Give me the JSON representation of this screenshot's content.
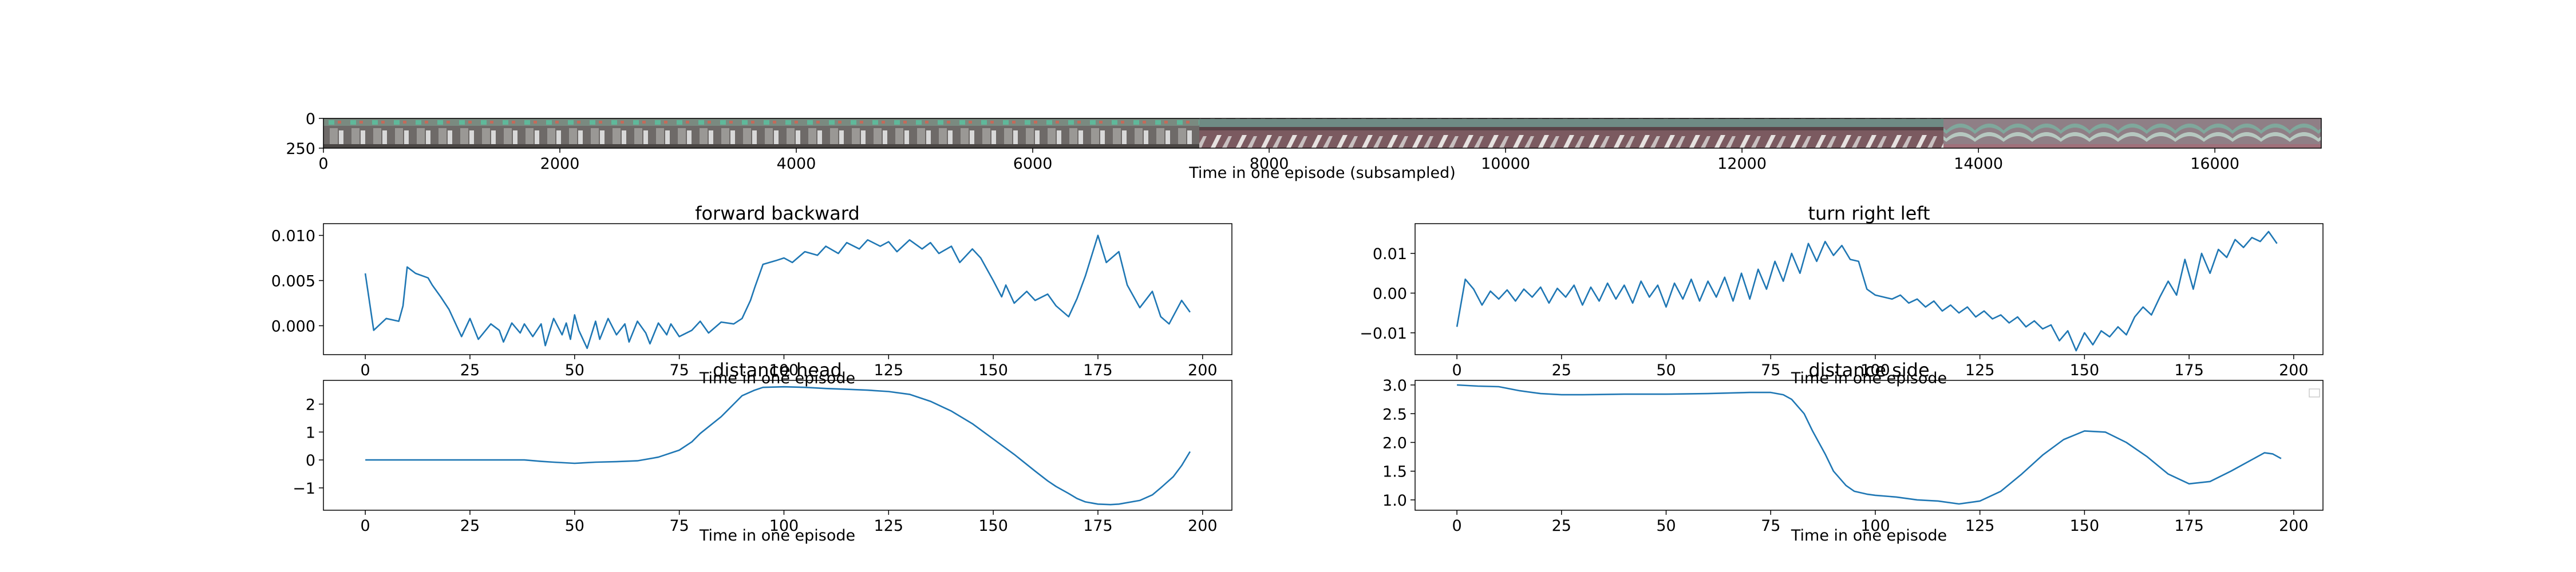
{
  "filmstrip": {
    "xlabel": "Time in one episode (subsampled)",
    "xlim": [
      0,
      16900
    ],
    "xticks": [
      "0",
      "2000",
      "4000",
      "6000",
      "8000",
      "10000",
      "12000",
      "14000",
      "16000"
    ],
    "ylim": [
      0,
      250
    ],
    "yticks": [
      "0",
      "250"
    ]
  },
  "chart_data": [
    {
      "type": "line",
      "title": "forward backward",
      "xlabel": "Time in one episode",
      "ylabel": "",
      "xlim": [
        -10,
        207
      ],
      "ylim": [
        -0.0032,
        0.0113
      ],
      "xticks": [
        "0",
        "25",
        "50",
        "75",
        "100",
        "125",
        "150",
        "175",
        "200"
      ],
      "yticks": [
        "0.000",
        "0.005",
        "0.010"
      ],
      "color": "#1f77b4",
      "series": [
        {
          "x": [
            0,
            2,
            5,
            8,
            9,
            10,
            12,
            15,
            16,
            18,
            20,
            23,
            25,
            27,
            30,
            32,
            33,
            35,
            37,
            38,
            40,
            42,
            43,
            45,
            47,
            48,
            49,
            50,
            51,
            53,
            55,
            56,
            58,
            60,
            62,
            63,
            65,
            67,
            68,
            70,
            72,
            73,
            75,
            78,
            80,
            82,
            85,
            88,
            90,
            92,
            93,
            95,
            98,
            100,
            102,
            105,
            108,
            110,
            113,
            115,
            118,
            120,
            123,
            125,
            127,
            130,
            133,
            135,
            137,
            140,
            142,
            145,
            147,
            150,
            152,
            153,
            155,
            158,
            160,
            163,
            165,
            168,
            170,
            172,
            175,
            177,
            180,
            182,
            185,
            188,
            190,
            192,
            195,
            197
          ],
          "y": [
            0.0058,
            -0.0005,
            0.0008,
            0.0005,
            0.0022,
            0.0065,
            0.0058,
            0.0053,
            0.0045,
            0.0032,
            0.0018,
            -0.0012,
            0.0008,
            -0.0015,
            0.0002,
            -0.0005,
            -0.0018,
            0.0003,
            -0.0008,
            0.0002,
            -0.0012,
            0.0002,
            -0.0022,
            0.0008,
            -0.001,
            0.0003,
            -0.0015,
            0.0012,
            -0.0005,
            -0.0025,
            0.0005,
            -0.0015,
            0.0008,
            -0.001,
            0.0002,
            -0.0018,
            0.0005,
            -0.0008,
            -0.002,
            0.0003,
            -0.001,
            0.0002,
            -0.0012,
            -0.0005,
            0.0005,
            -0.0008,
            0.0004,
            0.0002,
            0.0008,
            0.0028,
            0.0042,
            0.0068,
            0.0072,
            0.0075,
            0.007,
            0.0082,
            0.0078,
            0.0088,
            0.008,
            0.0092,
            0.0085,
            0.0095,
            0.0088,
            0.0093,
            0.0082,
            0.0095,
            0.0085,
            0.0092,
            0.008,
            0.0088,
            0.007,
            0.0085,
            0.0075,
            0.005,
            0.0032,
            0.0045,
            0.0025,
            0.0038,
            0.0028,
            0.0035,
            0.0022,
            0.001,
            0.003,
            0.0055,
            0.01,
            0.007,
            0.0082,
            0.0045,
            0.002,
            0.0038,
            0.001,
            0.0002,
            0.0028,
            0.0015
          ]
        }
      ]
    },
    {
      "type": "line",
      "title": "turn right left",
      "xlabel": "Time in one episode",
      "ylabel": "",
      "xlim": [
        -10,
        207
      ],
      "ylim": [
        -0.0155,
        0.0175
      ],
      "xticks": [
        "0",
        "25",
        "50",
        "75",
        "100",
        "125",
        "150",
        "175",
        "200"
      ],
      "yticks": [
        "−0.01",
        "0.00",
        "0.01"
      ],
      "color": "#1f77b4",
      "series": [
        {
          "x": [
            0,
            2,
            4,
            6,
            8,
            10,
            12,
            14,
            16,
            18,
            20,
            22,
            24,
            26,
            28,
            30,
            32,
            34,
            36,
            38,
            40,
            42,
            44,
            46,
            48,
            50,
            52,
            54,
            56,
            58,
            60,
            62,
            64,
            66,
            68,
            70,
            72,
            74,
            76,
            78,
            80,
            82,
            84,
            86,
            88,
            90,
            92,
            94,
            96,
            98,
            100,
            102,
            104,
            106,
            108,
            110,
            112,
            114,
            116,
            118,
            120,
            122,
            124,
            126,
            128,
            130,
            132,
            134,
            136,
            138,
            140,
            142,
            144,
            146,
            148,
            150,
            152,
            154,
            156,
            158,
            160,
            162,
            164,
            166,
            168,
            170,
            172,
            174,
            176,
            178,
            180,
            182,
            184,
            186,
            188,
            190,
            192,
            194,
            196
          ],
          "y": [
            -0.0085,
            0.0035,
            0.001,
            -0.003,
            0.0005,
            -0.0015,
            0.0008,
            -0.002,
            0.001,
            -0.001,
            0.0015,
            -0.0025,
            0.0012,
            -0.001,
            0.002,
            -0.003,
            0.0015,
            -0.002,
            0.0025,
            -0.0015,
            0.002,
            -0.0025,
            0.003,
            -0.001,
            0.002,
            -0.0035,
            0.0025,
            -0.0015,
            0.0035,
            -0.002,
            0.003,
            -0.001,
            0.004,
            -0.002,
            0.005,
            -0.0015,
            0.006,
            0.001,
            0.008,
            0.003,
            0.01,
            0.005,
            0.0125,
            0.008,
            0.013,
            0.0095,
            0.012,
            0.0085,
            0.008,
            0.001,
            -0.0005,
            -0.001,
            -0.0015,
            -0.0005,
            -0.0025,
            -0.0015,
            -0.0035,
            -0.002,
            -0.0045,
            -0.003,
            -0.005,
            -0.0035,
            -0.006,
            -0.0045,
            -0.0065,
            -0.0055,
            -0.0075,
            -0.006,
            -0.0085,
            -0.007,
            -0.009,
            -0.008,
            -0.012,
            -0.0095,
            -0.0145,
            -0.01,
            -0.013,
            -0.0095,
            -0.011,
            -0.0085,
            -0.0105,
            -0.006,
            -0.0035,
            -0.0055,
            -0.001,
            0.003,
            -0.0005,
            0.0085,
            0.001,
            0.01,
            0.005,
            0.011,
            0.009,
            0.0135,
            0.0115,
            0.014,
            0.013,
            0.0155,
            0.0125
          ]
        }
      ]
    },
    {
      "type": "line",
      "title": "distance head",
      "xlabel": "Time in one episode",
      "ylabel": "",
      "xlim": [
        -10,
        207
      ],
      "ylim": [
        -1.8,
        2.85
      ],
      "xticks": [
        "0",
        "25",
        "50",
        "75",
        "100",
        "125",
        "150",
        "175",
        "200"
      ],
      "yticks": [
        "−1",
        "0",
        "1",
        "2"
      ],
      "color": "#1f77b4",
      "series": [
        {
          "x": [
            0,
            10,
            20,
            30,
            38,
            42,
            45,
            50,
            55,
            60,
            65,
            70,
            75,
            78,
            80,
            85,
            88,
            90,
            93,
            95,
            100,
            105,
            110,
            115,
            120,
            125,
            130,
            135,
            140,
            145,
            150,
            155,
            160,
            163,
            165,
            168,
            170,
            172,
            175,
            178,
            180,
            185,
            188,
            190,
            193,
            195,
            197
          ],
          "y": [
            0,
            0,
            0,
            0,
            0,
            -0.05,
            -0.08,
            -0.12,
            -0.08,
            -0.06,
            -0.03,
            0.1,
            0.35,
            0.65,
            0.95,
            1.55,
            2.0,
            2.3,
            2.5,
            2.6,
            2.62,
            2.6,
            2.56,
            2.53,
            2.5,
            2.45,
            2.35,
            2.1,
            1.75,
            1.3,
            0.75,
            0.2,
            -0.4,
            -0.75,
            -0.95,
            -1.2,
            -1.38,
            -1.5,
            -1.58,
            -1.6,
            -1.58,
            -1.45,
            -1.25,
            -1.0,
            -0.6,
            -0.2,
            0.3
          ]
        }
      ]
    },
    {
      "type": "line",
      "title": "distance side",
      "xlabel": "Time in one episode",
      "ylabel": "",
      "xlim": [
        -10,
        207
      ],
      "ylim": [
        0.82,
        3.08
      ],
      "xticks": [
        "0",
        "25",
        "50",
        "75",
        "100",
        "125",
        "150",
        "175",
        "200"
      ],
      "yticks": [
        "1.0",
        "1.5",
        "2.0",
        "2.5",
        "3.0"
      ],
      "color": "#1f77b4",
      "legend": "top-right",
      "series": [
        {
          "x": [
            0,
            5,
            10,
            15,
            20,
            25,
            30,
            40,
            50,
            60,
            70,
            75,
            78,
            80,
            83,
            85,
            88,
            90,
            93,
            95,
            98,
            100,
            105,
            110,
            115,
            120,
            125,
            130,
            135,
            140,
            145,
            150,
            155,
            160,
            165,
            170,
            175,
            180,
            185,
            190,
            193,
            195,
            197
          ],
          "y": [
            3.0,
            2.98,
            2.97,
            2.9,
            2.85,
            2.83,
            2.83,
            2.84,
            2.84,
            2.85,
            2.87,
            2.87,
            2.83,
            2.75,
            2.5,
            2.2,
            1.8,
            1.5,
            1.25,
            1.15,
            1.1,
            1.08,
            1.05,
            1.0,
            0.98,
            0.93,
            0.98,
            1.15,
            1.45,
            1.78,
            2.05,
            2.2,
            2.18,
            2.0,
            1.75,
            1.45,
            1.28,
            1.32,
            1.5,
            1.7,
            1.82,
            1.8,
            1.72
          ]
        }
      ]
    }
  ]
}
